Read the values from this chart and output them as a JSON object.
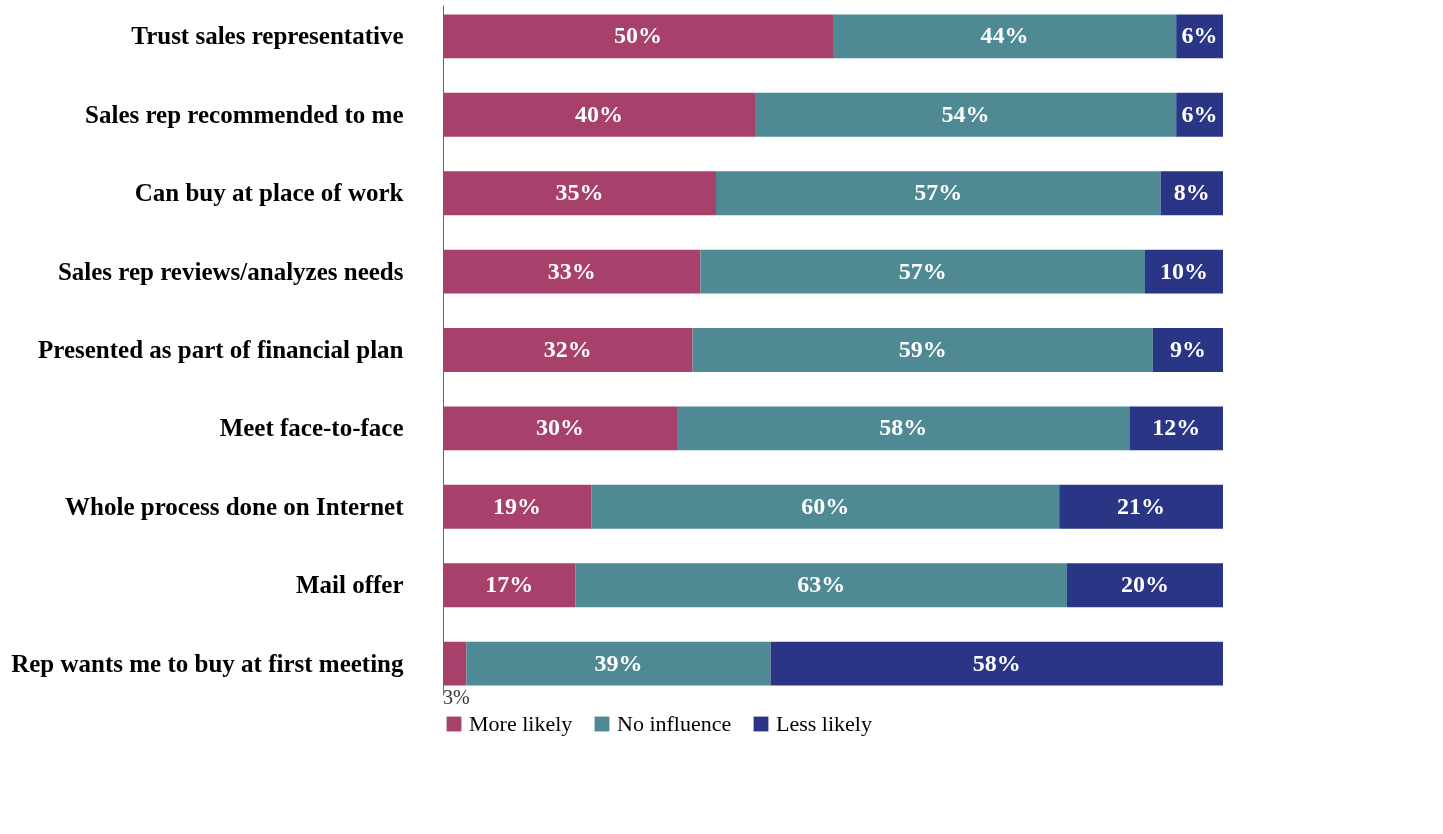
{
  "chart_data": {
    "type": "bar",
    "orientation": "horizontal",
    "stacked": true,
    "categories": [
      "Trust sales representative",
      "Sales rep recommended to me",
      "Can buy at place of work",
      "Sales rep reviews/analyzes  needs",
      "Presented as part of financial plan",
      "Meet face-to-face",
      "Whole process done on Internet",
      "Mail offer",
      "Rep wants me to buy at first meeting"
    ],
    "series": [
      {
        "name": "More likely",
        "color": "#a8406c",
        "values": [
          50,
          40,
          35,
          33,
          32,
          30,
          19,
          17,
          3
        ],
        "value_labels": [
          "50%",
          "40%",
          "35%",
          "33%",
          "32%",
          "30%",
          "19%",
          "17%",
          "3%"
        ]
      },
      {
        "name": "No influence",
        "color": "#4f8a94",
        "values": [
          44,
          54,
          57,
          57,
          59,
          58,
          60,
          63,
          39
        ],
        "value_labels": [
          "44%",
          "54%",
          "57%",
          "57%",
          "59%",
          "58%",
          "60%",
          "63%",
          "39%"
        ]
      },
      {
        "name": "Less likely",
        "color": "#2b3585",
        "values": [
          6,
          6,
          8,
          10,
          9,
          12,
          21,
          20,
          58
        ],
        "value_labels": [
          "6%",
          "6%",
          "8%",
          "10%",
          "9%",
          "12%",
          "21%",
          "20%",
          "58%"
        ]
      }
    ],
    "xlim": [
      0,
      100
    ],
    "tick_labels": "y",
    "grid": false,
    "legend": "bottom"
  }
}
